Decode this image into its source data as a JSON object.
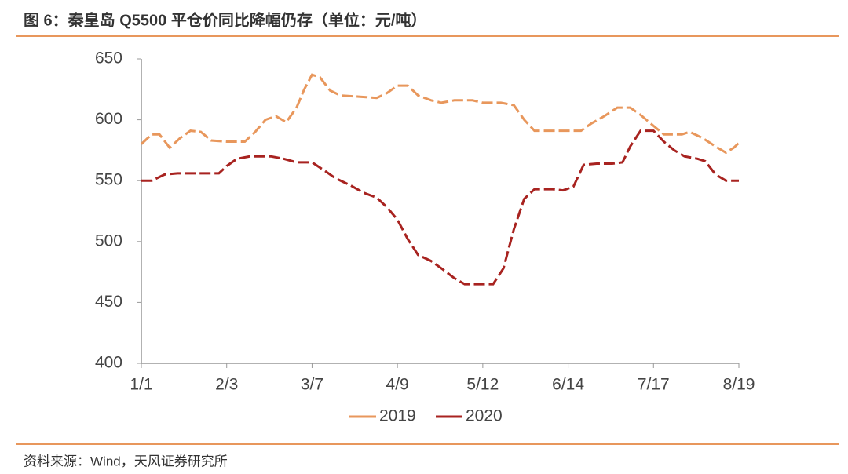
{
  "chart_data": {
    "type": "line",
    "title": "图 6：秦皇岛 Q5500 平仓价同比降幅仍存（单位：元/吨）",
    "source": "资料来源：Wind，天风证券研究所",
    "xlim": [
      "1/1",
      "8/19"
    ],
    "xticks": [
      "1/1",
      "2/3",
      "3/7",
      "4/9",
      "5/12",
      "6/14",
      "7/17",
      "8/19"
    ],
    "ylim": [
      400,
      650
    ],
    "yticks": [
      400,
      450,
      500,
      550,
      600,
      650
    ],
    "series": [
      {
        "name": "2019",
        "color": "#e8975c",
        "x": [
          "1/1",
          "1/5",
          "1/8",
          "1/12",
          "1/16",
          "1/20",
          "1/24",
          "1/28",
          "2/3",
          "2/10",
          "2/14",
          "2/18",
          "2/22",
          "2/26",
          "3/1",
          "3/4",
          "3/7",
          "3/10",
          "3/14",
          "3/18",
          "3/25",
          "4/1",
          "4/5",
          "4/9",
          "4/13",
          "4/17",
          "4/22",
          "4/26",
          "5/1",
          "5/8",
          "5/12",
          "5/19",
          "5/24",
          "5/28",
          "6/1",
          "6/8",
          "6/14",
          "6/19",
          "6/23",
          "6/28",
          "7/3",
          "7/8",
          "7/12",
          "7/17",
          "7/21",
          "7/28",
          "7/31",
          "8/5",
          "8/10",
          "8/14",
          "8/17",
          "8/19"
        ],
        "values": [
          580,
          588,
          588,
          577,
          585,
          591,
          590,
          583,
          582,
          582,
          590,
          600,
          603,
          598,
          610,
          625,
          637,
          635,
          624,
          620,
          619,
          618,
          622,
          628,
          628,
          620,
          616,
          614,
          616,
          616,
          614,
          614,
          612,
          600,
          591,
          591,
          591,
          591,
          597,
          603,
          610,
          610,
          604,
          595,
          588,
          588,
          590,
          585,
          578,
          573,
          577,
          581
        ]
      },
      {
        "name": "2020",
        "color": "#a82320",
        "x": [
          "1/1",
          "1/5",
          "1/10",
          "1/15",
          "1/24",
          "1/31",
          "2/3",
          "2/7",
          "2/12",
          "2/20",
          "2/25",
          "3/1",
          "3/7",
          "3/12",
          "3/16",
          "3/22",
          "3/27",
          "4/1",
          "4/5",
          "4/9",
          "4/13",
          "4/17",
          "4/22",
          "4/26",
          "5/1",
          "5/5",
          "5/12",
          "5/16",
          "5/20",
          "5/24",
          "5/28",
          "6/1",
          "6/8",
          "6/12",
          "6/16",
          "6/20",
          "6/25",
          "7/1",
          "7/5",
          "7/8",
          "7/12",
          "7/17",
          "7/21",
          "7/25",
          "7/29",
          "8/3",
          "8/6",
          "8/10",
          "8/14",
          "8/19"
        ],
        "values": [
          550,
          550,
          555,
          556,
          556,
          556,
          562,
          568,
          570,
          570,
          568,
          565,
          565,
          558,
          552,
          546,
          540,
          536,
          528,
          518,
          502,
          489,
          484,
          478,
          470,
          465,
          465,
          465,
          478,
          510,
          535,
          543,
          543,
          542,
          545,
          563,
          564,
          564,
          565,
          578,
          591,
          591,
          582,
          575,
          570,
          568,
          566,
          555,
          550,
          550
        ]
      }
    ]
  }
}
